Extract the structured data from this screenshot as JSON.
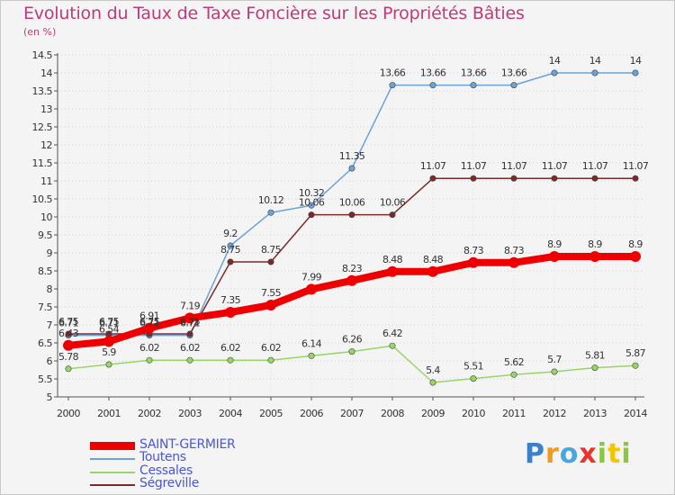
{
  "chart_data": {
    "type": "line",
    "title": "Evolution du Taux de Taxe Foncière sur les Propriétés Bâties",
    "ylabel": "(en %)",
    "xlabel": "",
    "x": [
      "2000",
      "2001",
      "2002",
      "2003",
      "2004",
      "2005",
      "2006",
      "2007",
      "2008",
      "2009",
      "2010",
      "2011",
      "2012",
      "2013",
      "2014"
    ],
    "ylim": [
      5,
      14.5
    ],
    "yticks": [
      "5",
      "5.5",
      "6",
      "6.5",
      "7",
      "7.5",
      "8",
      "8.5",
      "9",
      "9.5",
      "10",
      "10.5",
      "11",
      "11.5",
      "12",
      "12.5",
      "13",
      "13.5",
      "14",
      "14.5"
    ],
    "grid": "horizontal dotted",
    "legend_position": "bottom-left",
    "series": [
      {
        "name": "SAINT-GERMIER",
        "color": "#ee0000",
        "values": [
          6.43,
          6.54,
          6.91,
          7.19,
          7.35,
          7.55,
          7.99,
          8.23,
          8.48,
          8.48,
          8.73,
          8.73,
          8.9,
          8.9,
          8.9
        ],
        "labels": [
          "6.43",
          "6.54",
          "6.91",
          "7.19",
          "7.35",
          "7.55",
          "7.99",
          "8.23",
          "8.48",
          "8.48",
          "8.73",
          "8.73",
          "8.9",
          "8.9",
          "8.9"
        ]
      },
      {
        "name": "Toutens",
        "color": "#6ba3d6",
        "values": [
          6.71,
          6.71,
          6.71,
          6.71,
          9.2,
          10.12,
          10.32,
          11.35,
          13.66,
          13.66,
          13.66,
          13.66,
          14,
          14,
          14
        ],
        "labels": [
          "6.71",
          "6.71",
          "6.71",
          "6.71",
          "9.2",
          "10.12",
          "10.32",
          "11.35",
          "13.66",
          "13.66",
          "13.66",
          "13.66",
          "14",
          "14",
          "14"
        ]
      },
      {
        "name": "Cessales",
        "color": "#99d566",
        "values": [
          5.78,
          5.9,
          6.02,
          6.02,
          6.02,
          6.02,
          6.14,
          6.26,
          6.42,
          5.4,
          5.51,
          5.62,
          5.7,
          5.81,
          5.87
        ],
        "labels": [
          "5.78",
          "5.9",
          "6.02",
          "6.02",
          "6.02",
          "6.02",
          "6.14",
          "6.26",
          "6.42",
          "5.4",
          "5.51",
          "5.62",
          "5.7",
          "5.81",
          "5.87"
        ]
      },
      {
        "name": "Ségreville",
        "color": "#7a2a2a",
        "values": [
          6.75,
          6.75,
          6.75,
          6.75,
          8.75,
          8.75,
          10.06,
          10.06,
          10.06,
          11.07,
          11.07,
          11.07,
          11.07,
          11.07,
          11.07
        ],
        "labels": [
          "6.75",
          "6.75",
          "6.75",
          "6.75",
          "8.75",
          "8.75",
          "10.06",
          "10.06",
          "10.06",
          "11.07",
          "11.07",
          "11.07",
          "11.07",
          "11.07",
          "11.07"
        ]
      }
    ]
  },
  "brand": {
    "letters": [
      "P",
      "r",
      "o",
      "x",
      "i",
      "t",
      "i"
    ],
    "colors": [
      "#3d7fc8",
      "#f09a1e",
      "#4aa6dc",
      "#e7352d",
      "#8cc63f",
      "#f2c500",
      "#8cc63f"
    ]
  }
}
